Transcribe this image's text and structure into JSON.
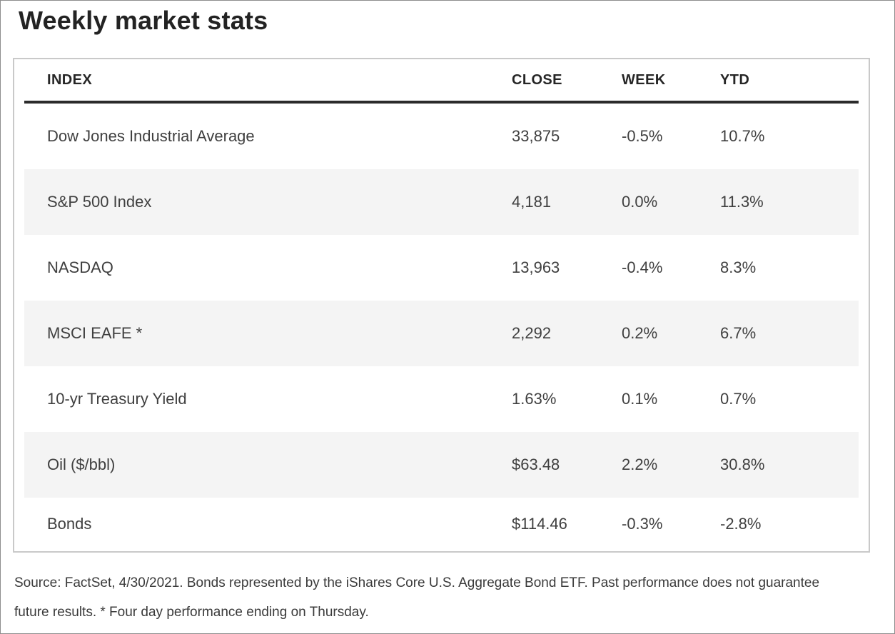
{
  "page": {
    "title": "Weekly market stats"
  },
  "table": {
    "columns": [
      "INDEX",
      "CLOSE",
      "WEEK",
      "YTD"
    ],
    "rows": [
      {
        "index": "Dow Jones Industrial Average",
        "close": "33,875",
        "week": "-0.5%",
        "ytd": "10.7%",
        "striped": false
      },
      {
        "index": "S&P 500 Index",
        "close": "4,181",
        "week": "0.0%",
        "ytd": "11.3%",
        "striped": true
      },
      {
        "index": "NASDAQ",
        "close": "13,963",
        "week": "-0.4%",
        "ytd": "8.3%",
        "striped": false
      },
      {
        "index": "MSCI EAFE *",
        "close": "2,292",
        "week": "0.2%",
        "ytd": "6.7%",
        "striped": true
      },
      {
        "index": "10-yr Treasury Yield",
        "close": "1.63%",
        "week": "0.1%",
        "ytd": "0.7%",
        "striped": false
      },
      {
        "index": "Oil ($/bbl)",
        "close": "$63.48",
        "week": "2.2%",
        "ytd": "30.8%",
        "striped": true
      },
      {
        "index": "Bonds",
        "close": "$114.46",
        "week": "-0.3%",
        "ytd": "-2.8%",
        "striped": false
      }
    ]
  },
  "footnote": {
    "line1": "Source: FactSet, 4/30/2021. Bonds represented by the iShares Core U.S. Aggregate Bond ETF. Past performance does not guarantee",
    "line2": "future results. * Four day performance ending on Thursday."
  },
  "colors": {
    "stripe": "#f4f4f4",
    "table_border": "#c9c9c9",
    "header_rule": "#2b2b2b",
    "title_text": "#232323",
    "body_text": "#3f3f3f",
    "footnote_text": "#3a3a3a"
  }
}
